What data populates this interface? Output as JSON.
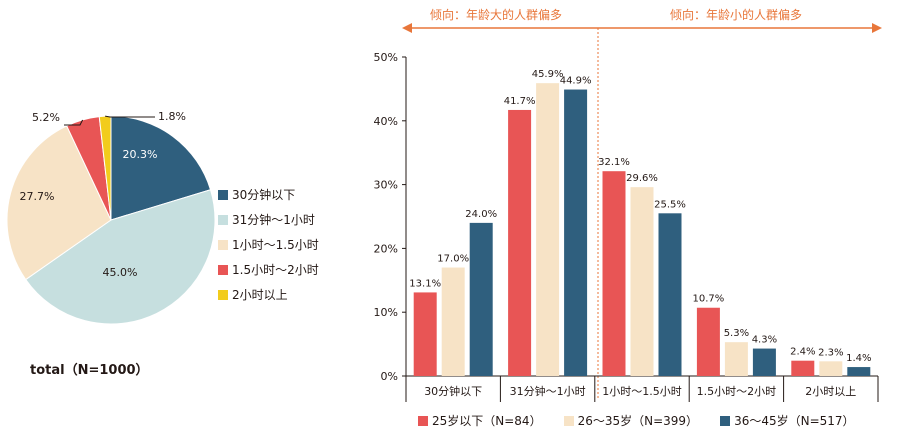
{
  "colors": {
    "navy": "#2f5f7e",
    "lightblue": "#c6dfdf",
    "cream": "#f7e3c6",
    "red": "#e85555",
    "yellow": "#f2cc1c",
    "arrow": "#e8763a"
  },
  "pie": {
    "caption": "total（N=1000）"
  },
  "bar": {
    "tendency_left": "倾向：年龄大的人群偏多",
    "tendency_right": "倾向：年龄小的人群偏多"
  },
  "chart_data": [
    {
      "type": "pie",
      "categories": [
        "30分钟以下",
        "31分钟～1小时",
        "1小时～1.5小时",
        "1.5小时～2小时",
        "2小时以上"
      ],
      "values": [
        20.3,
        45.0,
        27.7,
        5.2,
        1.8
      ],
      "value_labels": [
        "20.3%",
        "45.0%",
        "27.7%",
        "5.2%",
        "1.8%"
      ],
      "colors": [
        "#2f5f7e",
        "#c6dfdf",
        "#f7e3c6",
        "#e85555",
        "#f2cc1c"
      ],
      "title": "total（N=1000）",
      "legend": "right"
    },
    {
      "type": "bar",
      "categories": [
        "30分钟以下",
        "31分钟～1小时",
        "1小时～1.5小时",
        "1.5小时～2小时",
        "2小时以上"
      ],
      "series": [
        {
          "name": "25岁以下（N=84）",
          "values": [
            13.1,
            41.7,
            32.1,
            10.7,
            2.4
          ],
          "labels": [
            "13.1%",
            "41.7%",
            "32.1%",
            "10.7%",
            "2.4%"
          ],
          "color": "#e85555"
        },
        {
          "name": "26～35岁（N=399）",
          "values": [
            17.0,
            45.9,
            29.6,
            5.3,
            2.3
          ],
          "labels": [
            "17.0%",
            "45.9%",
            "29.6%",
            "5.3%",
            "2.3%"
          ],
          "color": "#f7e3c6"
        },
        {
          "name": "36～45岁（N=517）",
          "values": [
            24.0,
            44.9,
            25.5,
            4.3,
            1.4
          ],
          "labels": [
            "24.0%",
            "44.9%",
            "25.5%",
            "4.3%",
            "1.4%"
          ],
          "color": "#2f5f7e"
        }
      ],
      "yticks": [
        "0%",
        "10%",
        "20%",
        "30%",
        "40%",
        "50%"
      ],
      "ylim": [
        0,
        50
      ],
      "legend": "bottom",
      "grid": false
    }
  ]
}
